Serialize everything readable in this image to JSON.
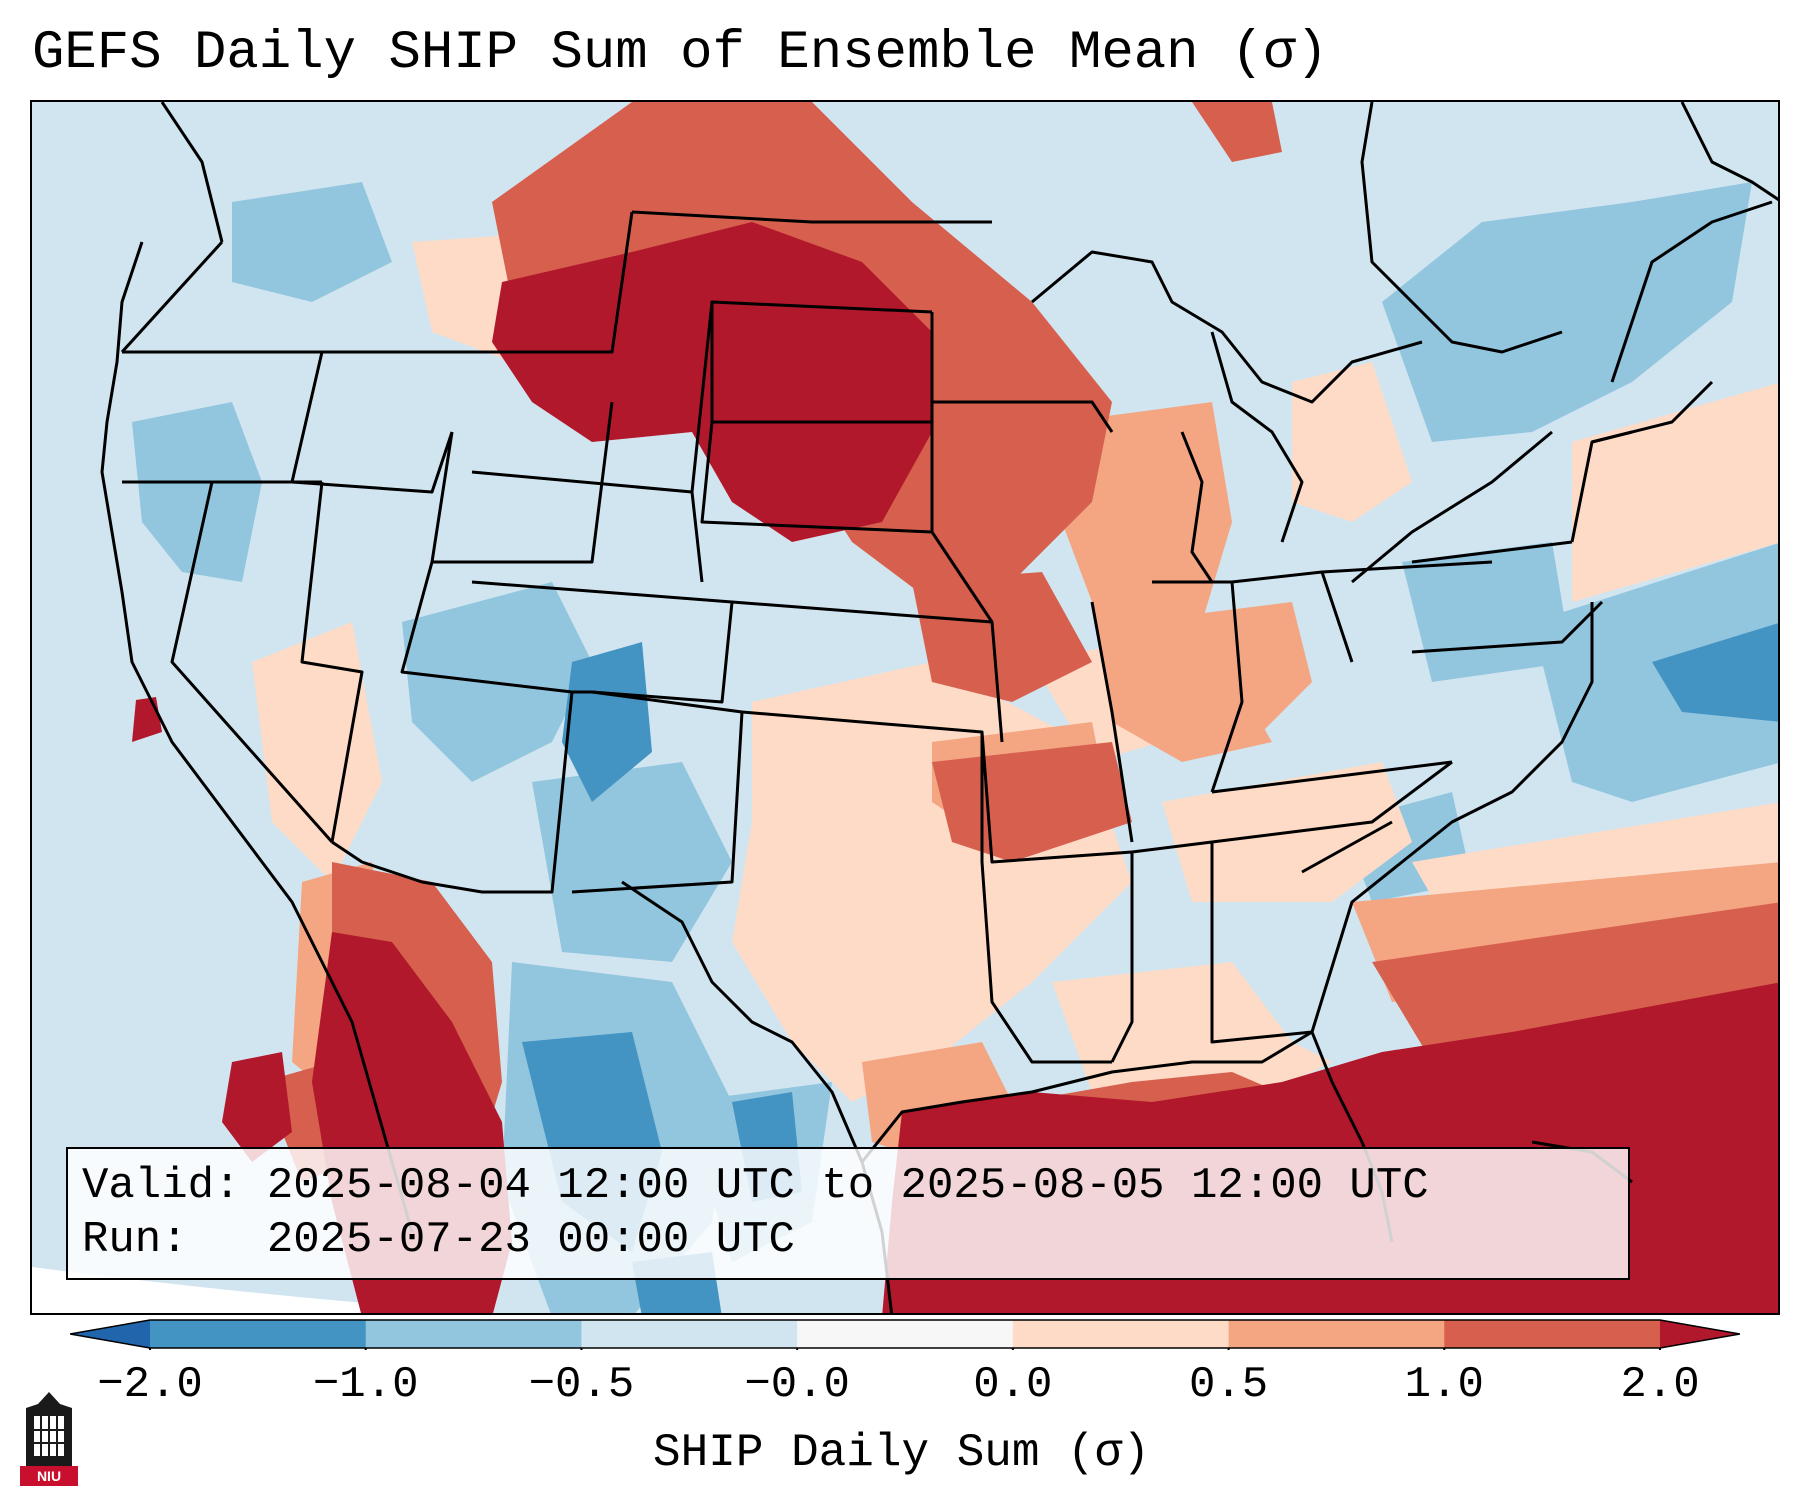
{
  "title": "GEFS Daily SHIP Sum of Ensemble Mean (σ)",
  "info": {
    "valid_label": "Valid:",
    "valid_value": "2025-08-04 12:00 UTC to 2025-08-05 12:00 UTC",
    "run_label": "Run:",
    "run_value": "2025-07-23 00:00 UTC"
  },
  "colorbar": {
    "label": "SHIP Daily Sum (σ)",
    "ticks": [
      "−2.0",
      "−1.0",
      "−0.5",
      "−0.0",
      "0.0",
      "0.5",
      "1.0",
      "2.0"
    ],
    "bins": [
      {
        "color": "#4393c3"
      },
      {
        "color": "#92c5de"
      },
      {
        "color": "#d1e5f0"
      },
      {
        "color": "#f7f7f7"
      },
      {
        "color": "#fddbc7"
      },
      {
        "color": "#f4a582"
      },
      {
        "color": "#d6604d"
      }
    ],
    "under_color": "#2166ac",
    "over_color": "#b2182b"
  },
  "logo": {
    "text": "NIU",
    "color": "#c8102e"
  }
}
